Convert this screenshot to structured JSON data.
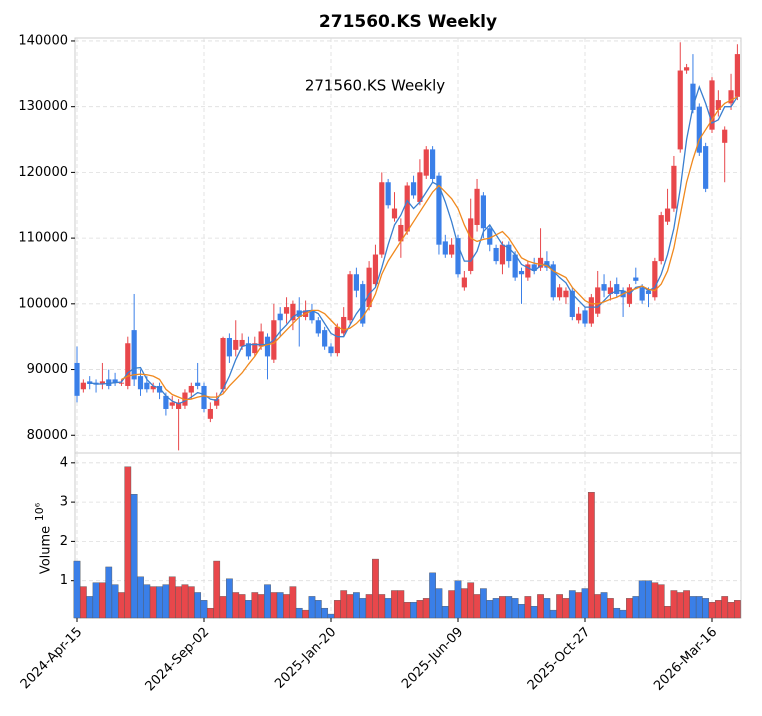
{
  "chart_data": {
    "type": "candlestick",
    "title": "271560.KS  Weekly",
    "annotation": "271560.KS  Weekly",
    "x": [
      "2024-04-15",
      "2024-04-22",
      "2024-04-29",
      "2024-05-06",
      "2024-05-13",
      "2024-05-20",
      "2024-05-27",
      "2024-06-03",
      "2024-06-10",
      "2024-06-17",
      "2024-06-24",
      "2024-07-01",
      "2024-07-08",
      "2024-07-15",
      "2024-07-22",
      "2024-07-29",
      "2024-08-05",
      "2024-08-12",
      "2024-08-19",
      "2024-08-26",
      "2024-09-02",
      "2024-09-09",
      "2024-09-16",
      "2024-09-23",
      "2024-09-30",
      "2024-10-07",
      "2024-10-14",
      "2024-10-21",
      "2024-10-28",
      "2024-11-04",
      "2024-11-11",
      "2024-11-18",
      "2024-11-25",
      "2024-12-02",
      "2024-12-09",
      "2024-12-16",
      "2024-12-23",
      "2024-12-30",
      "2025-01-06",
      "2025-01-13",
      "2025-01-20",
      "2025-01-27",
      "2025-02-03",
      "2025-02-10",
      "2025-02-17",
      "2025-02-24",
      "2025-03-03",
      "2025-03-10",
      "2025-03-17",
      "2025-03-24",
      "2025-03-31",
      "2025-04-07",
      "2025-04-14",
      "2025-04-21",
      "2025-04-28",
      "2025-05-05",
      "2025-05-12",
      "2025-05-19",
      "2025-05-26",
      "2025-06-02",
      "2025-06-09",
      "2025-06-16",
      "2025-06-23",
      "2025-06-30",
      "2025-07-07",
      "2025-07-14",
      "2025-07-21",
      "2025-07-28",
      "2025-08-04",
      "2025-08-11",
      "2025-08-18",
      "2025-08-25",
      "2025-09-01",
      "2025-09-08",
      "2025-09-15",
      "2025-09-22",
      "2025-09-29",
      "2025-10-06",
      "2025-10-13",
      "2025-10-20",
      "2025-10-27",
      "2025-11-03",
      "2025-11-10",
      "2025-11-17",
      "2025-11-24",
      "2025-12-01",
      "2025-12-08",
      "2025-12-15",
      "2025-12-22",
      "2025-12-29",
      "2026-01-05",
      "2026-01-12",
      "2026-01-19",
      "2026-01-26",
      "2026-02-02",
      "2026-02-09",
      "2026-02-16",
      "2026-02-23",
      "2026-03-02",
      "2026-03-09",
      "2026-03-16",
      "2026-03-23",
      "2026-03-30",
      "2026-04-06",
      "2026-04-13"
    ],
    "xticks": [
      {
        "value": "2024-04-15",
        "label": "2024-Apr-15"
      },
      {
        "value": "2024-09-02",
        "label": "2024-Sep-02"
      },
      {
        "value": "2025-01-20",
        "label": "2025-Jan-20"
      },
      {
        "value": "2025-06-09",
        "label": "2025-Jun-09"
      },
      {
        "value": "2025-10-27",
        "label": "2025-Oct-27"
      },
      {
        "value": "2026-03-16",
        "label": "2026-Mar-16"
      }
    ],
    "open": [
      91000,
      87000,
      88200,
      88000,
      87800,
      88500,
      88500,
      88000,
      87500,
      96000,
      89000,
      88000,
      87000,
      87500,
      86000,
      84500,
      84000,
      84500,
      86500,
      88000,
      87500,
      82500,
      84500,
      87000,
      94800,
      93000,
      93500,
      94000,
      92500,
      93500,
      95000,
      91500,
      98500,
      98500,
      97500,
      99000,
      98000,
      99000,
      97500,
      96000,
      93500,
      92500,
      95500,
      97500,
      104500,
      103000,
      99500,
      103000,
      107500,
      118500,
      113000,
      109500,
      111000,
      118500,
      115500,
      119500,
      123500,
      119500,
      109500,
      107500,
      110000,
      102500,
      105000,
      112000,
      116500,
      111500,
      108500,
      106000,
      109000,
      107500,
      105000,
      104000,
      106000,
      105500,
      106500,
      106000,
      101000,
      101000,
      102000,
      97500,
      99000,
      97000,
      98500,
      103000,
      101500,
      103000,
      102000,
      100000,
      104000,
      102500,
      102000,
      101000,
      106500,
      112500,
      114500,
      123500,
      135500,
      133500,
      130000,
      124000,
      126500,
      129500,
      124500,
      130500,
      131500
    ],
    "high": [
      93500,
      88500,
      89000,
      88500,
      91000,
      90000,
      89500,
      88500,
      95000,
      101500,
      90000,
      89000,
      88000,
      88000,
      86500,
      86000,
      85500,
      87000,
      88000,
      91000,
      88000,
      85000,
      86500,
      95000,
      95500,
      97500,
      95500,
      95000,
      95000,
      97000,
      95500,
      100000,
      99500,
      101000,
      100500,
      101000,
      100500,
      100000,
      98000,
      96500,
      94000,
      97000,
      99500,
      105000,
      105500,
      103500,
      106500,
      109000,
      120000,
      119000,
      117000,
      113000,
      118500,
      119500,
      122000,
      124000,
      124000,
      120000,
      110500,
      110000,
      110500,
      105000,
      116000,
      119000,
      117000,
      112000,
      109000,
      109500,
      109500,
      108000,
      105500,
      106500,
      107000,
      111500,
      108000,
      106500,
      103000,
      102500,
      102500,
      99500,
      99500,
      101500,
      105000,
      104500,
      103500,
      104000,
      102500,
      103000,
      105500,
      103000,
      102500,
      107000,
      114000,
      117500,
      122500,
      139800,
      136500,
      138000,
      130500,
      124500,
      134500,
      132500,
      127000,
      135000,
      139500
    ],
    "low": [
      85000,
      86500,
      87000,
      86500,
      87000,
      87000,
      87500,
      87500,
      87000,
      87500,
      86000,
      86500,
      86500,
      85500,
      83000,
      84000,
      77700,
      84000,
      85500,
      87000,
      83500,
      82000,
      84000,
      86500,
      91000,
      92000,
      93000,
      91500,
      92000,
      93000,
      88500,
      91000,
      95000,
      97000,
      96000,
      93500,
      97500,
      97000,
      95000,
      93000,
      92000,
      92000,
      95000,
      97000,
      101000,
      96500,
      99000,
      102500,
      107000,
      114500,
      112500,
      107000,
      110500,
      116000,
      115000,
      119000,
      118500,
      107500,
      107000,
      107000,
      104000,
      102000,
      104500,
      111000,
      110000,
      108000,
      106000,
      104500,
      105500,
      103500,
      100000,
      103500,
      104500,
      105000,
      105000,
      100500,
      100500,
      100000,
      97500,
      97000,
      96500,
      96500,
      98000,
      101000,
      100500,
      101000,
      98000,
      99500,
      103000,
      100000,
      99500,
      100500,
      106000,
      112000,
      114000,
      123000,
      135000,
      129000,
      122500,
      117000,
      126000,
      128500,
      118500,
      129500,
      131000
    ],
    "close": [
      86000,
      88000,
      87800,
      87700,
      88200,
      87500,
      88000,
      88000,
      94000,
      88500,
      87000,
      87000,
      87500,
      86500,
      84000,
      85000,
      85000,
      86500,
      87500,
      87500,
      84000,
      84000,
      85500,
      94800,
      92000,
      94500,
      94500,
      92000,
      94000,
      95800,
      92000,
      97500,
      97500,
      99500,
      100000,
      98000,
      99000,
      97500,
      95500,
      93500,
      92500,
      96500,
      98000,
      104500,
      102000,
      97000,
      105500,
      107500,
      118500,
      115000,
      114500,
      112000,
      118000,
      116500,
      120000,
      123500,
      119000,
      109000,
      107500,
      109000,
      104500,
      104000,
      113000,
      117500,
      111500,
      109000,
      106500,
      109000,
      106500,
      104000,
      104500,
      106000,
      105000,
      107000,
      105500,
      101000,
      102500,
      102000,
      98000,
      98500,
      97000,
      101000,
      102500,
      102000,
      102500,
      101500,
      101000,
      102500,
      103500,
      100500,
      101500,
      106500,
      113500,
      114500,
      121000,
      135500,
      136000,
      129500,
      123000,
      117500,
      134000,
      131000,
      126500,
      132500,
      138000
    ],
    "up_color": "#e8474b",
    "down_color": "#3a7fe8",
    "ylim": [
      77300,
      140450
    ],
    "yticks": [
      80000,
      90000,
      100000,
      110000,
      120000,
      130000,
      140000
    ],
    "grid": true,
    "series": [
      {
        "color": "#3a7fd0",
        "values": [
          null,
          null,
          88000,
          87800,
          87800,
          87900,
          88000,
          88100,
          89500,
          90200,
          90300,
          88500,
          87500,
          87200,
          86000,
          85200,
          84800,
          85200,
          85800,
          86500,
          86200,
          85500,
          85300,
          87000,
          89000,
          91500,
          93500,
          93800,
          93800,
          93800,
          93800,
          94500,
          95800,
          96800,
          98000,
          98600,
          98900,
          99000,
          98500,
          97000,
          95500,
          95000,
          95000,
          96800,
          98500,
          99800,
          101500,
          102500,
          105500,
          109000,
          112000,
          113500,
          115700,
          114500,
          115500,
          117000,
          118500,
          118000,
          115500,
          112500,
          108900,
          106500,
          106500,
          108000,
          111000,
          112000,
          110500,
          109000,
          108500,
          107500,
          106000,
          105500,
          105000,
          105800,
          106200,
          105000,
          104000,
          103200,
          101500,
          100500,
          99500,
          99500,
          99500,
          100500,
          101500,
          102000,
          102000,
          101500,
          102500,
          102700,
          102000,
          102500,
          104500,
          107500,
          111500,
          117500,
          125000,
          130000,
          133000,
          130500,
          127500,
          128000,
          130000,
          130000,
          131500
        ]
      },
      {
        "color": "#f0891e",
        "values": [
          null,
          null,
          null,
          null,
          null,
          null,
          null,
          88500,
          89000,
          89200,
          89300,
          89200,
          89000,
          88500,
          87000,
          86200,
          85800,
          85400,
          85500,
          85800,
          86000,
          85800,
          85800,
          86300,
          87500,
          88500,
          89500,
          90800,
          92000,
          93500,
          93800,
          94000,
          95000,
          96000,
          97000,
          98000,
          98500,
          99000,
          99000,
          98500,
          97500,
          96500,
          96000,
          96300,
          97000,
          98000,
          99500,
          101500,
          104500,
          106500,
          108000,
          109500,
          111000,
          112500,
          114000,
          115500,
          117000,
          118000,
          117000,
          116000,
          114500,
          112000,
          110000,
          109500,
          109800,
          110000,
          110500,
          111000,
          110000,
          108500,
          107000,
          106500,
          106200,
          106000,
          105800,
          105000,
          104500,
          104000,
          102500,
          101500,
          100500,
          100000,
          100000,
          100300,
          100700,
          101000,
          101500,
          102000,
          102300,
          102700,
          102200,
          102000,
          103000,
          105000,
          108500,
          113500,
          118500,
          122000,
          125000,
          126500,
          128000,
          129500,
          130500,
          131000,
          131500
        ]
      }
    ],
    "volume": {
      "label": "Volume",
      "unit": "10⁶",
      "ylim": [
        0.05,
        4.25
      ],
      "yticks": [
        1,
        2,
        3,
        4
      ],
      "values": [
        1.5,
        0.85,
        0.6,
        0.95,
        0.95,
        1.35,
        0.9,
        0.7,
        3.9,
        3.2,
        1.1,
        0.9,
        0.85,
        0.85,
        0.9,
        1.1,
        0.85,
        0.9,
        0.85,
        0.7,
        0.5,
        0.3,
        1.5,
        0.6,
        1.05,
        0.7,
        0.65,
        0.5,
        0.7,
        0.65,
        0.9,
        0.7,
        0.7,
        0.65,
        0.85,
        0.3,
        0.25,
        0.6,
        0.5,
        0.3,
        0.15,
        0.5,
        0.75,
        0.65,
        0.7,
        0.55,
        0.65,
        1.55,
        0.65,
        0.55,
        0.75,
        0.75,
        0.45,
        0.45,
        0.5,
        0.55,
        1.2,
        0.8,
        0.35,
        0.75,
        1.0,
        0.8,
        0.95,
        0.65,
        0.8,
        0.5,
        0.55,
        0.6,
        0.6,
        0.55,
        0.4,
        0.6,
        0.35,
        0.65,
        0.55,
        0.25,
        0.65,
        0.55,
        0.75,
        0.7,
        0.8,
        3.25,
        0.65,
        0.7,
        0.55,
        0.3,
        0.25,
        0.55,
        0.6,
        1.0,
        1.0,
        0.95,
        0.9,
        0.35,
        0.75,
        0.7,
        0.75,
        0.6,
        0.6,
        0.55,
        0.45,
        0.5,
        0.6,
        0.45,
        0.5
      ]
    }
  }
}
